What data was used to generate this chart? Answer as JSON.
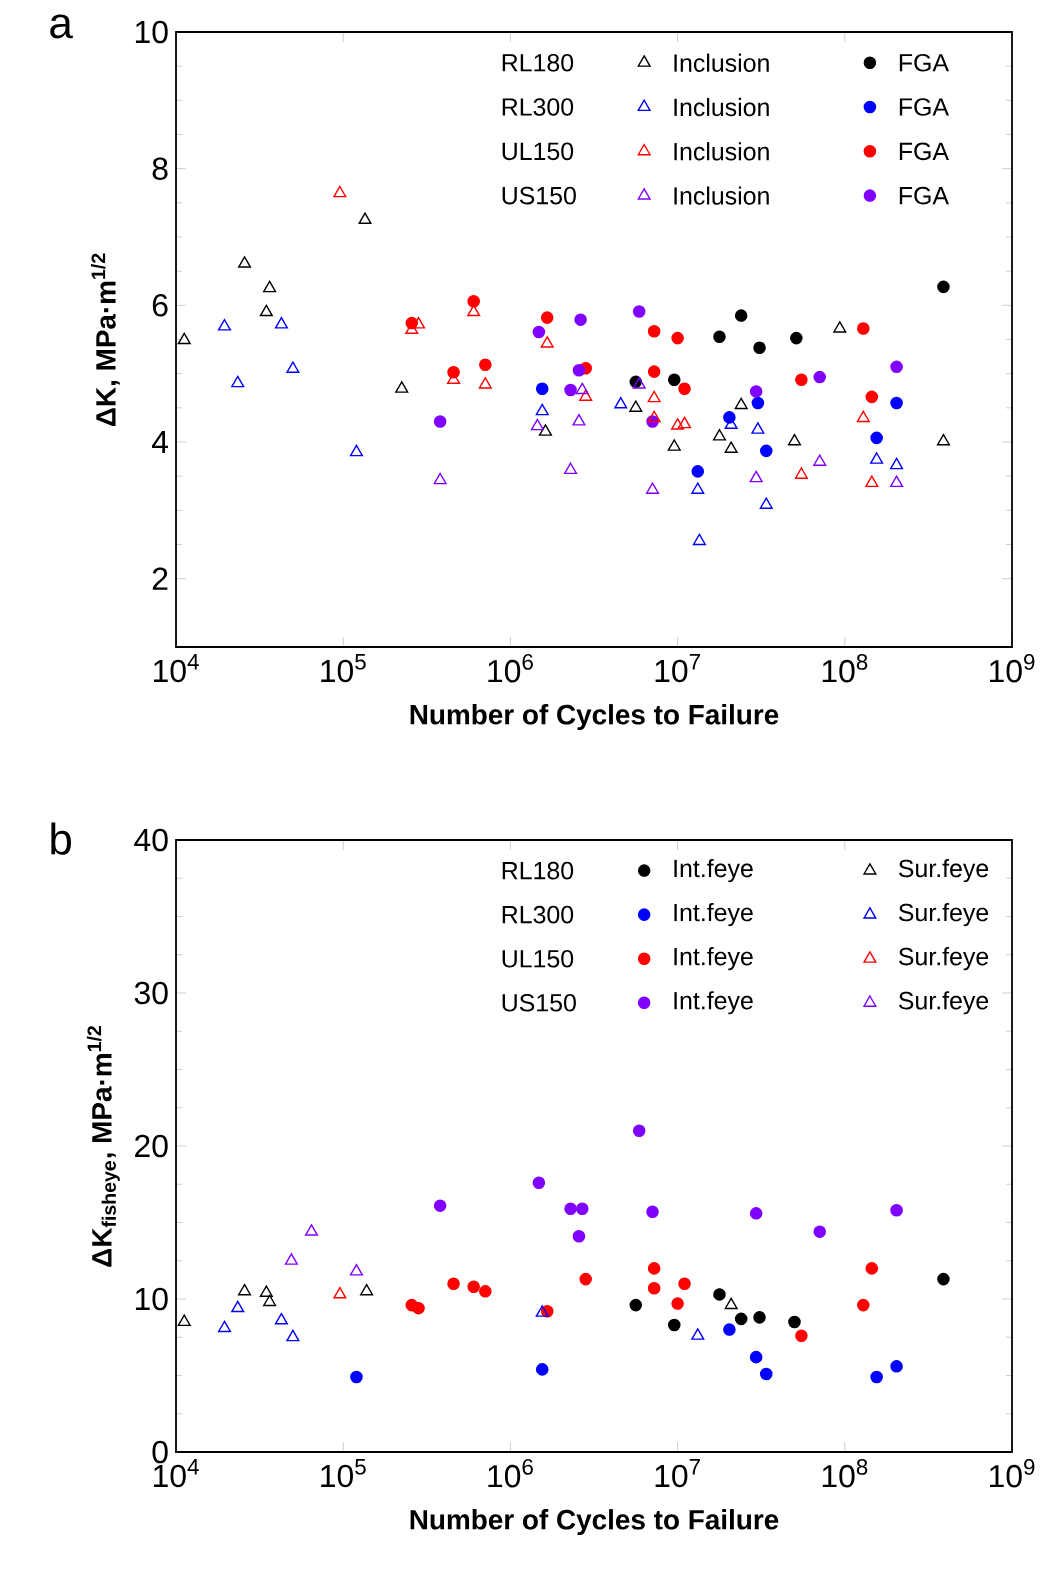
{
  "chart_data": [
    {
      "type": "scatter",
      "title": "a",
      "xlabel": "Number of Cycles to Failure",
      "ylabel": "ΔK, MPa·m$^{1/2}$",
      "log": "x",
      "grid": false,
      "legend": "top right",
      "xlim": [
        10000,
        1000000000
      ],
      "xticks": [
        {
          "value": 10000,
          "label": "10$^{4}$"
        },
        {
          "value": 100000,
          "label": "10$^{5}$"
        },
        {
          "value": 1000000,
          "label": "10$^{6}$"
        },
        {
          "value": 10000000,
          "label": "10$^{7}$"
        },
        {
          "value": 100000000,
          "label": "10$^{8}$"
        },
        {
          "value": 1000000000,
          "label": "10$^{9}$"
        }
      ],
      "ylim": [
        1,
        10
      ],
      "yticks": [
        2,
        4,
        6,
        8,
        10
      ],
      "annotations": [
        "RL180",
        "RL300",
        "UL150",
        "US150"
      ],
      "series": [
        {
          "name": "Inclusion",
          "color": "#000000",
          "marker": "triangle",
          "x": [
            11200,
            25700,
            36300,
            34700,
            135000,
            224000,
            1620000,
            5620000,
            9550000,
            17800000,
            20900000,
            24000000,
            50000000,
            93300000,
            389000000
          ],
          "values": [
            5.49,
            6.61,
            6.25,
            5.9,
            7.25,
            4.78,
            4.15,
            4.5,
            3.93,
            4.08,
            3.9,
            4.54,
            4.01,
            5.66,
            4.01
          ]
        },
        {
          "name": "FGA",
          "color": "#000000",
          "marker": "circle",
          "x": [
            5620000,
            9550000,
            17800000,
            24000000,
            30900000,
            51300000,
            389000000
          ],
          "values": [
            4.88,
            4.91,
            5.54,
            5.85,
            5.38,
            5.52,
            6.27
          ]
        },
        {
          "name": "Inclusion",
          "color": "#0000ff",
          "marker": "triangle",
          "x": [
            19500,
            23400,
            42700,
            50000,
            120000,
            1550000,
            4570000,
            13200000,
            13500000,
            20900000,
            30200000,
            33900000,
            155000000,
            204000000
          ],
          "values": [
            5.69,
            4.86,
            5.72,
            5.07,
            3.85,
            4.45,
            4.55,
            3.3,
            2.55,
            4.25,
            4.18,
            3.08,
            3.74,
            3.66
          ]
        },
        {
          "name": "FGA",
          "color": "#0000ff",
          "marker": "circle",
          "x": [
            1550000,
            13200000,
            20400000,
            30200000,
            33900000,
            155000000,
            204000000
          ],
          "values": [
            4.78,
            3.57,
            4.36,
            4.57,
            3.87,
            4.06,
            4.57
          ]
        },
        {
          "name": "Inclusion",
          "color": "#ff0000",
          "marker": "triangle",
          "x": [
            95500,
            257000,
            282000,
            457000,
            603000,
            708000,
            1660000,
            2820000,
            7240000,
            7240000,
            10000000,
            11000000,
            55000000,
            129000000,
            145000000
          ],
          "values": [
            7.64,
            5.64,
            5.72,
            4.91,
            5.9,
            4.84,
            5.44,
            4.66,
            4.64,
            4.35,
            4.24,
            4.26,
            3.52,
            4.35,
            3.4
          ]
        },
        {
          "name": "FGA",
          "color": "#ff0000",
          "marker": "circle",
          "x": [
            257000,
            457000,
            603000,
            708000,
            1660000,
            2820000,
            7240000,
            10000000,
            11000000,
            7240000,
            55000000,
            129000000,
            145000000
          ],
          "values": [
            5.74,
            5.02,
            6.06,
            5.13,
            5.82,
            5.08,
            5.62,
            5.52,
            4.78,
            5.03,
            4.91,
            5.66,
            4.66
          ]
        },
        {
          "name": "Inclusion",
          "color": "#8000ff",
          "marker": "triangle",
          "x": [
            380000,
            1450000,
            2570000,
            2290000,
            2690000,
            5890000,
            7080000,
            29500000,
            70800000,
            204000000
          ],
          "values": [
            3.44,
            4.23,
            4.3,
            3.59,
            4.76,
            4.84,
            3.3,
            3.47,
            3.71,
            3.4
          ]
        },
        {
          "name": "FGA",
          "color": "#8000ff",
          "marker": "circle",
          "x": [
            380000,
            1480000,
            2630000,
            2570000,
            2290000,
            5890000,
            7080000,
            29500000,
            70800000,
            204000000
          ],
          "values": [
            4.3,
            5.61,
            5.79,
            5.05,
            4.76,
            5.91,
            4.3,
            4.74,
            4.95,
            5.1
          ]
        }
      ]
    },
    {
      "type": "scatter",
      "title": "b",
      "xlabel": "Number of Cycles to Failure",
      "ylabel": "ΔK$_{fisheye}$, MPa·m$^{1/2}$",
      "log": "x",
      "grid": false,
      "legend": "top right",
      "xlim": [
        10000,
        1000000000
      ],
      "xticks": [
        {
          "value": 10000,
          "label": "10$^{4}$"
        },
        {
          "value": 100000,
          "label": "10$^{5}$"
        },
        {
          "value": 1000000,
          "label": "10$^{6}$"
        },
        {
          "value": 10000000,
          "label": "10$^{7}$"
        },
        {
          "value": 100000000,
          "label": "10$^{8}$"
        },
        {
          "value": 1000000000,
          "label": "10$^{9}$"
        }
      ],
      "ylim": [
        0,
        40
      ],
      "yticks": [
        0,
        10,
        20,
        30,
        40
      ],
      "annotations": [
        "RL180",
        "RL300",
        "UL150",
        "US150"
      ],
      "series": [
        {
          "name": "Int.feye",
          "color": "#000000",
          "marker": "circle",
          "x": [
            5620000,
            9550000,
            17800000,
            24000000,
            30900000,
            50000000,
            389000000
          ],
          "values": [
            9.6,
            8.3,
            10.3,
            8.7,
            8.8,
            8.5,
            11.3
          ]
        },
        {
          "name": "Sur.feye",
          "color": "#000000",
          "marker": "triangle",
          "x": [
            11200,
            25700,
            34700,
            36300,
            138000,
            20900000
          ],
          "values": [
            8.5,
            10.5,
            10.4,
            9.8,
            10.5,
            9.6
          ]
        },
        {
          "name": "Int.feye",
          "color": "#0000ff",
          "marker": "circle",
          "x": [
            120000,
            1550000,
            20400000,
            29500000,
            33900000,
            155000000,
            204000000
          ],
          "values": [
            4.9,
            5.4,
            8.0,
            6.2,
            5.1,
            4.9,
            5.6
          ]
        },
        {
          "name": "Sur.feye",
          "color": "#0000ff",
          "marker": "triangle",
          "x": [
            19500,
            23400,
            42700,
            50000,
            1550000,
            13200000
          ],
          "values": [
            8.1,
            9.4,
            8.6,
            7.5,
            9.1,
            7.6
          ]
        },
        {
          "name": "Int.feye",
          "color": "#ff0000",
          "marker": "circle",
          "x": [
            257000,
            282000,
            457000,
            603000,
            708000,
            1660000,
            2820000,
            7240000,
            7240000,
            10000000,
            11000000,
            55000000,
            129000000,
            145000000
          ],
          "values": [
            9.6,
            9.4,
            11.0,
            10.8,
            10.5,
            9.2,
            11.3,
            12.0,
            10.7,
            9.7,
            11.0,
            7.6,
            9.6,
            12.0
          ]
        },
        {
          "name": "Sur.feye",
          "color": "#ff0000",
          "marker": "triangle",
          "x": [
            95500
          ],
          "values": [
            10.3
          ]
        },
        {
          "name": "Int.feye",
          "color": "#8000ff",
          "marker": "circle",
          "x": [
            380000,
            1480000,
            2290000,
            2690000,
            2570000,
            5890000,
            7080000,
            29500000,
            70800000,
            204000000
          ],
          "values": [
            16.1,
            17.6,
            15.9,
            15.9,
            14.1,
            21.0,
            15.7,
            15.6,
            14.4,
            15.8
          ]
        },
        {
          "name": "Sur.feye",
          "color": "#8000ff",
          "marker": "triangle",
          "x": [
            49000,
            64600,
            120000
          ],
          "values": [
            12.5,
            14.4,
            11.8
          ]
        }
      ]
    }
  ]
}
